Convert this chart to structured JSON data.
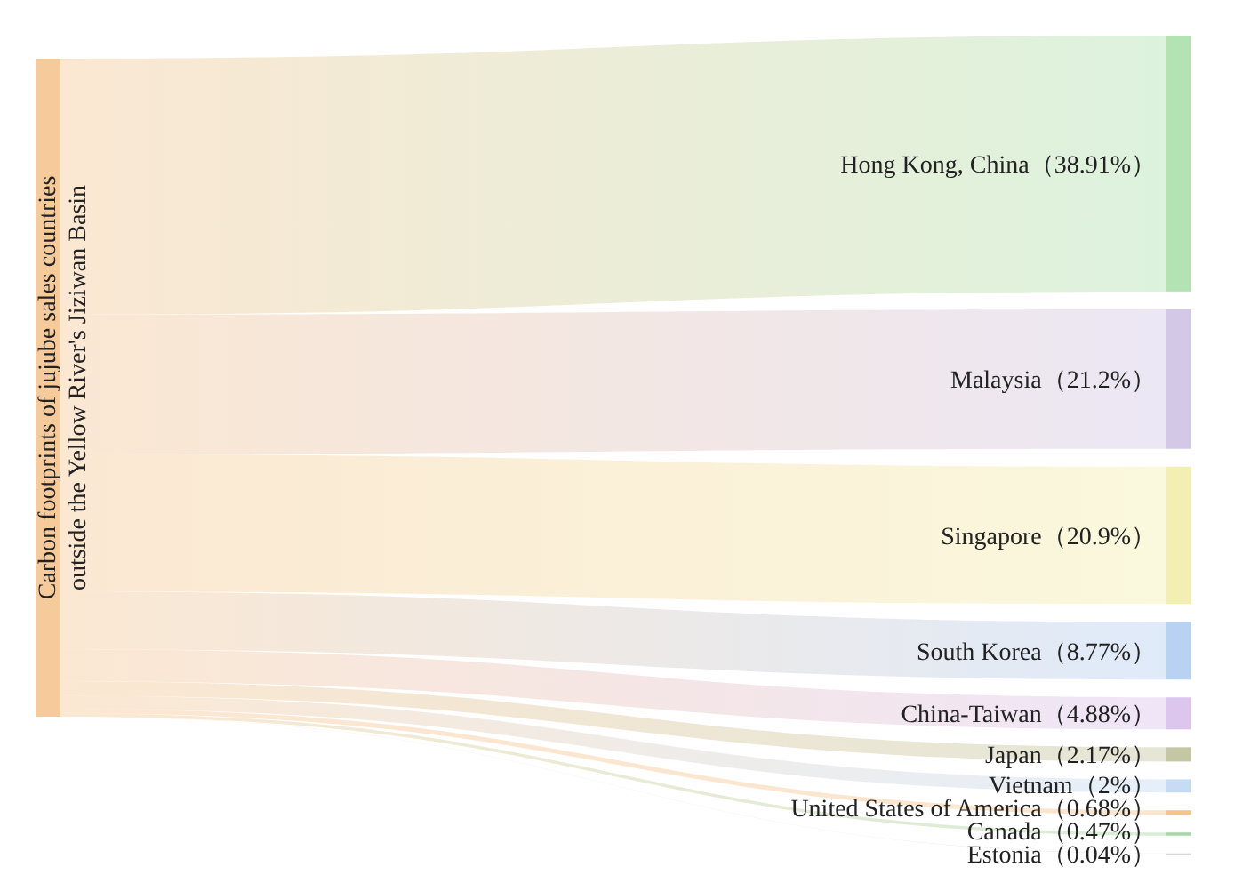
{
  "chart_data": {
    "type": "other",
    "title": "Carbon footprints of jujube sales countries outside the Yellow River's Jiziwan Basin",
    "categories": [
      "Hong Kong, China",
      "Malaysia",
      "Singapore",
      "South Korea",
      "China-Taiwan",
      "Japan",
      "Vietnam",
      "United States of America",
      "Canada",
      "Estonia"
    ],
    "values": [
      38.91,
      21.2,
      20.9,
      8.77,
      4.88,
      2.17,
      2,
      0.68,
      0.47,
      0.04
    ],
    "value_labels": [
      "（38.91%）",
      "（21.2%）",
      "（20.9%）",
      "（8.77%）",
      "（4.88%）",
      "（2.17%）",
      "（2%）",
      "（0.68%）",
      "（0.47%）",
      "（0.04%）"
    ],
    "colors": [
      "#b3e3b3",
      "#d3c9e6",
      "#f3efb3",
      "#b9d1f3",
      "#dcc6ee",
      "#c3c7a4",
      "#c6dcf4",
      "#f5c58f",
      "#a6d7a6",
      "#d6d6d6"
    ],
    "color": "#f6cb9c"
  }
}
